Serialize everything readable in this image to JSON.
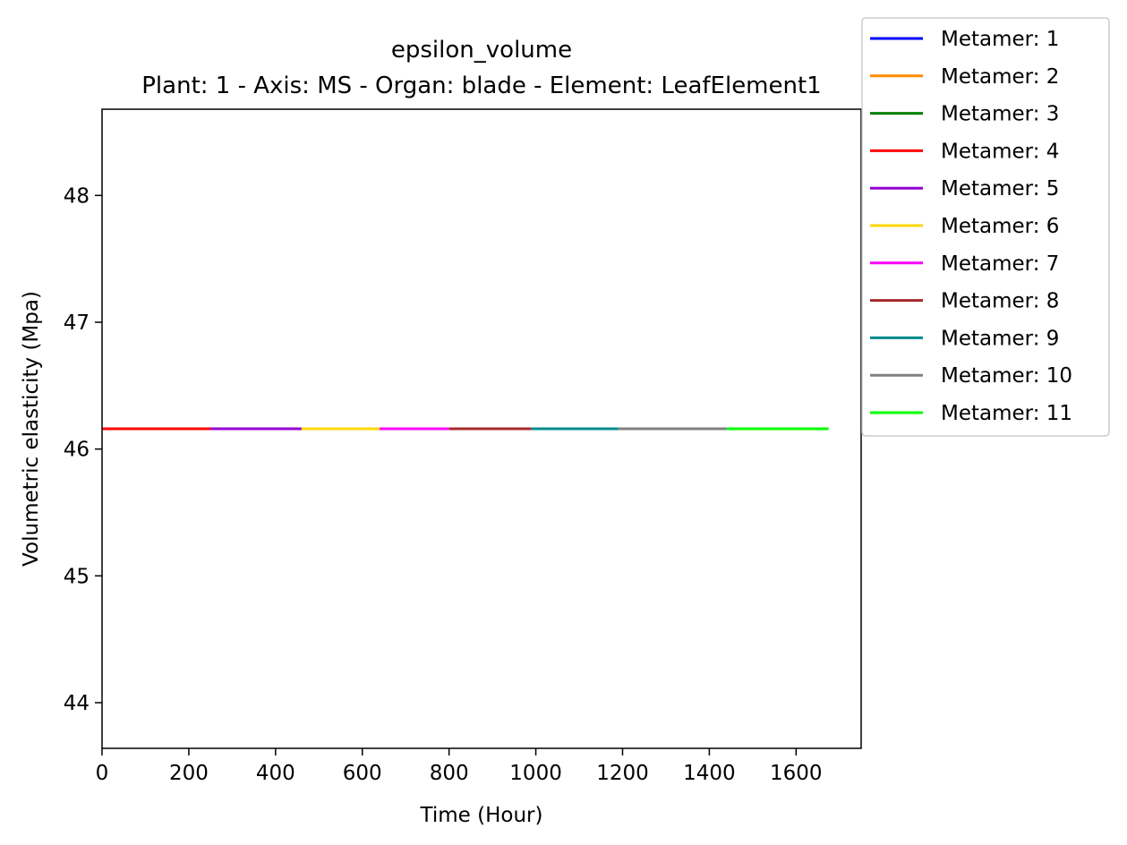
{
  "chart_data": {
    "type": "line",
    "title": "epsilon_volume",
    "subtitle": "Plant: 1 - Axis: MS - Organ: blade - Element: LeafElement1",
    "xlabel": "Time (Hour)",
    "ylabel": "Volumetric elasticity (Mpa)",
    "xlim": [
      0,
      1750
    ],
    "ylim": [
      43.64,
      48.68
    ],
    "xticks": [
      0,
      200,
      400,
      600,
      800,
      1000,
      1200,
      1400,
      1600
    ],
    "yticks": [
      44,
      45,
      46,
      47,
      48
    ],
    "grid": false,
    "legend_position": "top-right (outside plot)",
    "series": [
      {
        "name": "Metamer: 1",
        "color": "#0000ff",
        "x": [
          0,
          250
        ],
        "y": [
          46.16,
          46.16
        ]
      },
      {
        "name": "Metamer: 2",
        "color": "#ff8c00",
        "x": [
          0,
          250
        ],
        "y": [
          46.16,
          46.16
        ]
      },
      {
        "name": "Metamer: 3",
        "color": "#008000",
        "x": [
          0,
          250
        ],
        "y": [
          46.16,
          46.16
        ]
      },
      {
        "name": "Metamer: 4",
        "color": "#ff0000",
        "x": [
          0,
          250
        ],
        "y": [
          46.16,
          46.16
        ]
      },
      {
        "name": "Metamer: 5",
        "color": "#9400d3",
        "x": [
          250,
          460
        ],
        "y": [
          46.16,
          46.16
        ]
      },
      {
        "name": "Metamer: 6",
        "color": "#ffd700",
        "x": [
          460,
          640
        ],
        "y": [
          46.16,
          46.16
        ]
      },
      {
        "name": "Metamer: 7",
        "color": "#ff00ff",
        "x": [
          640,
          800
        ],
        "y": [
          46.16,
          46.16
        ]
      },
      {
        "name": "Metamer: 8",
        "color": "#a52a2a",
        "x": [
          800,
          990
        ],
        "y": [
          46.16,
          46.16
        ]
      },
      {
        "name": "Metamer: 9",
        "color": "#008b8b",
        "x": [
          990,
          1190
        ],
        "y": [
          46.16,
          46.16
        ]
      },
      {
        "name": "Metamer: 10",
        "color": "#808080",
        "x": [
          1190,
          1440
        ],
        "y": [
          46.16,
          46.16
        ]
      },
      {
        "name": "Metamer: 11",
        "color": "#00ff00",
        "x": [
          1440,
          1675
        ],
        "y": [
          46.16,
          46.16
        ]
      }
    ]
  }
}
